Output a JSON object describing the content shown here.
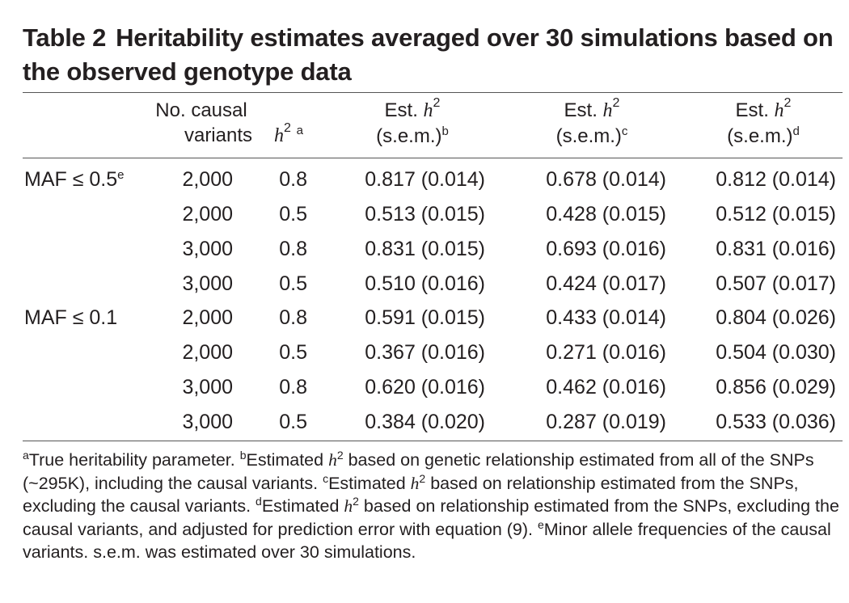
{
  "table": {
    "label": "Table 2",
    "title": "Heritability estimates averaged over 30 simulations based on the observed genotype data",
    "headers": {
      "causal_line1": "No. causal",
      "causal_line2": "variants",
      "h2_symbol": "h",
      "h2_sup": "2",
      "h2_note": "a",
      "est_prefix": "Est.",
      "est_symbol": "h",
      "est_sup": "2",
      "sem_label": "(s.e.m.)",
      "est1_note": "b",
      "est2_note": "c",
      "est3_note": "d"
    },
    "groups": [
      {
        "name": "MAF ≤ 0.5",
        "note": "e",
        "rows": [
          {
            "n": "2,000",
            "h2": "0.8",
            "e1": "0.817 (0.014)",
            "e2": "0.678 (0.014)",
            "e3": "0.812 (0.014)"
          },
          {
            "n": "2,000",
            "h2": "0.5",
            "e1": "0.513 (0.015)",
            "e2": "0.428 (0.015)",
            "e3": "0.512 (0.015)"
          },
          {
            "n": "3,000",
            "h2": "0.8",
            "e1": "0.831 (0.015)",
            "e2": "0.693 (0.016)",
            "e3": "0.831 (0.016)"
          },
          {
            "n": "3,000",
            "h2": "0.5",
            "e1": "0.510 (0.016)",
            "e2": "0.424 (0.017)",
            "e3": "0.507 (0.017)"
          }
        ]
      },
      {
        "name": "MAF ≤ 0.1",
        "note": "",
        "rows": [
          {
            "n": "2,000",
            "h2": "0.8",
            "e1": "0.591 (0.015)",
            "e2": "0.433 (0.014)",
            "e3": "0.804 (0.026)"
          },
          {
            "n": "2,000",
            "h2": "0.5",
            "e1": "0.367 (0.016)",
            "e2": "0.271 (0.016)",
            "e3": "0.504 (0.030)"
          },
          {
            "n": "3,000",
            "h2": "0.8",
            "e1": "0.620 (0.016)",
            "e2": "0.462 (0.016)",
            "e3": "0.856 (0.029)"
          },
          {
            "n": "3,000",
            "h2": "0.5",
            "e1": "0.384 (0.020)",
            "e2": "0.287 (0.019)",
            "e3": "0.533 (0.036)"
          }
        ]
      }
    ]
  },
  "footnotes": {
    "a_mark": "a",
    "a_text": "True heritability parameter. ",
    "b_mark": "b",
    "b_text1": "Estimated ",
    "b_text2": " based on genetic relationship estimated from all of the SNPs (~295K), including the causal variants. ",
    "c_mark": "c",
    "c_text1": "Estimated ",
    "c_text2": " based on relationship estimated from the SNPs, excluding the causal variants. ",
    "d_mark": "d",
    "d_text1": "Estimated ",
    "d_text2": " based on relationship estimated from the SNPs, excluding the causal variants, and adjusted for prediction error with equation (9). ",
    "e_mark": "e",
    "e_text": "Minor allele frequencies of the causal variants. s.e.m. was estimated over 30 simulations.",
    "h_symbol": "h",
    "h_sup": "2"
  }
}
